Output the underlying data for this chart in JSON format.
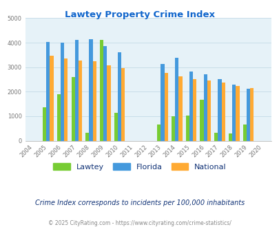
{
  "title": "Lawtey Property Crime Index",
  "years": [
    2004,
    2005,
    2006,
    2007,
    2008,
    2009,
    2010,
    2011,
    2012,
    2013,
    2014,
    2015,
    2016,
    2017,
    2018,
    2019,
    2020
  ],
  "lawtey": [
    0,
    1350,
    1900,
    2600,
    330,
    4100,
    1150,
    0,
    0,
    650,
    1000,
    1020,
    1680,
    330,
    290,
    650,
    0
  ],
  "florida": [
    0,
    4020,
    3990,
    4100,
    4150,
    3850,
    3600,
    0,
    0,
    3120,
    3380,
    2820,
    2700,
    2510,
    2300,
    2130,
    0
  ],
  "national": [
    0,
    3460,
    3360,
    3260,
    3250,
    3080,
    2970,
    0,
    0,
    2760,
    2620,
    2510,
    2460,
    2360,
    2230,
    2160,
    0
  ],
  "lawtey_color": "#77cc33",
  "florida_color": "#4499dd",
  "national_color": "#ffaa33",
  "background_color": "#e6f2f8",
  "ylim": [
    0,
    5000
  ],
  "yticks": [
    0,
    1000,
    2000,
    3000,
    4000,
    5000
  ],
  "subtitle": "Crime Index corresponds to incidents per 100,000 inhabitants",
  "footer": "© 2025 CityRating.com - https://www.cityrating.com/crime-statistics/",
  "title_color": "#1166cc",
  "subtitle_color": "#113377",
  "footer_color": "#888888",
  "grid_color": "#c8dde8",
  "bar_width": 0.25
}
